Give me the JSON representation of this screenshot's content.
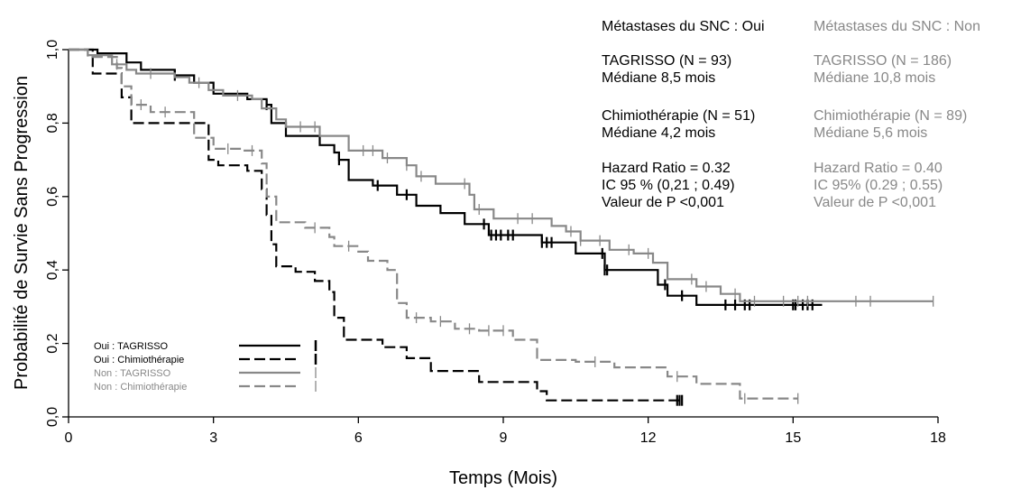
{
  "chart_data": {
    "type": "line",
    "xlabel": "Temps (Mois)",
    "ylabel": "Probabilité de Survie Sans Progression",
    "xlim": [
      0,
      18
    ],
    "ylim": [
      0,
      1
    ],
    "xticks": [
      "0",
      "3",
      "6",
      "9",
      "12",
      "15",
      "18"
    ],
    "yticks": [
      "0,0",
      "0,2",
      "0,4",
      "0,6",
      "0,8",
      "1,0"
    ],
    "grid": false,
    "legend_position": "bottom-left",
    "series": [
      {
        "name": "Oui : TAGRISSO",
        "color": "#000000",
        "dash": "solid",
        "points": [
          [
            0,
            1.0
          ],
          [
            0.6,
            1.0
          ],
          [
            0.6,
            0.99
          ],
          [
            1.2,
            0.99
          ],
          [
            1.2,
            0.965
          ],
          [
            1.5,
            0.965
          ],
          [
            1.5,
            0.945
          ],
          [
            2.2,
            0.945
          ],
          [
            2.2,
            0.93
          ],
          [
            2.6,
            0.93
          ],
          [
            2.6,
            0.91
          ],
          [
            3.0,
            0.91
          ],
          [
            3.0,
            0.88
          ],
          [
            3.7,
            0.88
          ],
          [
            3.7,
            0.865
          ],
          [
            4.1,
            0.865
          ],
          [
            4.1,
            0.85
          ],
          [
            4.2,
            0.85
          ],
          [
            4.2,
            0.8
          ],
          [
            4.5,
            0.8
          ],
          [
            4.5,
            0.765
          ],
          [
            5.2,
            0.765
          ],
          [
            5.2,
            0.74
          ],
          [
            5.5,
            0.74
          ],
          [
            5.5,
            0.72
          ],
          [
            5.6,
            0.72
          ],
          [
            5.6,
            0.7
          ],
          [
            5.8,
            0.7
          ],
          [
            5.8,
            0.645
          ],
          [
            6.3,
            0.645
          ],
          [
            6.3,
            0.63
          ],
          [
            6.8,
            0.63
          ],
          [
            6.8,
            0.605
          ],
          [
            7.2,
            0.605
          ],
          [
            7.2,
            0.575
          ],
          [
            7.7,
            0.575
          ],
          [
            7.7,
            0.555
          ],
          [
            8.2,
            0.555
          ],
          [
            8.2,
            0.525
          ],
          [
            8.7,
            0.525
          ],
          [
            8.7,
            0.495
          ],
          [
            9.8,
            0.495
          ],
          [
            9.8,
            0.475
          ],
          [
            10.5,
            0.475
          ],
          [
            10.5,
            0.445
          ],
          [
            11.1,
            0.445
          ],
          [
            11.1,
            0.4
          ],
          [
            12.2,
            0.4
          ],
          [
            12.2,
            0.36
          ],
          [
            12.4,
            0.36
          ],
          [
            12.4,
            0.33
          ],
          [
            13.0,
            0.33
          ],
          [
            13.0,
            0.305
          ],
          [
            15.6,
            0.305
          ]
        ],
        "censor_x": [
          2.2,
          4.1,
          5.6,
          6.4,
          7.0,
          8.6,
          8.75,
          8.85,
          8.95,
          9.1,
          9.2,
          9.8,
          9.9,
          10.0,
          11.05,
          11.1,
          11.15,
          12.35,
          12.7,
          13.6,
          13.8,
          14.0,
          14.1,
          15.0,
          15.05,
          15.2,
          15.3,
          15.4
        ]
      },
      {
        "name": "Oui : Chimiothérapie",
        "color": "#000000",
        "dash": "long-dash",
        "points": [
          [
            0,
            1.0
          ],
          [
            0.5,
            1.0
          ],
          [
            0.5,
            0.935
          ],
          [
            1.1,
            0.935
          ],
          [
            1.1,
            0.87
          ],
          [
            1.3,
            0.87
          ],
          [
            1.3,
            0.8
          ],
          [
            2.9,
            0.8
          ],
          [
            2.9,
            0.7
          ],
          [
            3.1,
            0.7
          ],
          [
            3.1,
            0.685
          ],
          [
            3.7,
            0.685
          ],
          [
            3.7,
            0.67
          ],
          [
            4.0,
            0.67
          ],
          [
            4.0,
            0.62
          ],
          [
            4.1,
            0.62
          ],
          [
            4.1,
            0.55
          ],
          [
            4.2,
            0.55
          ],
          [
            4.2,
            0.47
          ],
          [
            4.3,
            0.47
          ],
          [
            4.3,
            0.41
          ],
          [
            4.7,
            0.41
          ],
          [
            4.7,
            0.395
          ],
          [
            5.1,
            0.395
          ],
          [
            5.1,
            0.37
          ],
          [
            5.4,
            0.37
          ],
          [
            5.4,
            0.34
          ],
          [
            5.5,
            0.34
          ],
          [
            5.5,
            0.27
          ],
          [
            5.7,
            0.27
          ],
          [
            5.7,
            0.21
          ],
          [
            6.5,
            0.21
          ],
          [
            6.5,
            0.19
          ],
          [
            7.0,
            0.19
          ],
          [
            7.0,
            0.16
          ],
          [
            7.5,
            0.16
          ],
          [
            7.5,
            0.125
          ],
          [
            8.5,
            0.125
          ],
          [
            8.5,
            0.095
          ],
          [
            9.7,
            0.095
          ],
          [
            9.7,
            0.07
          ],
          [
            9.9,
            0.07
          ],
          [
            9.9,
            0.045
          ],
          [
            12.7,
            0.045
          ]
        ],
        "censor_x": [
          12.6,
          12.65,
          12.7
        ]
      },
      {
        "name": "Non : TAGRISSO",
        "color": "#888888",
        "dash": "solid",
        "points": [
          [
            0,
            1.0
          ],
          [
            0.4,
            1.0
          ],
          [
            0.4,
            0.985
          ],
          [
            0.9,
            0.985
          ],
          [
            0.9,
            0.96
          ],
          [
            1.2,
            0.96
          ],
          [
            1.2,
            0.945
          ],
          [
            1.4,
            0.945
          ],
          [
            1.4,
            0.935
          ],
          [
            2.2,
            0.935
          ],
          [
            2.2,
            0.925
          ],
          [
            2.5,
            0.925
          ],
          [
            2.5,
            0.91
          ],
          [
            2.9,
            0.91
          ],
          [
            2.9,
            0.89
          ],
          [
            3.2,
            0.89
          ],
          [
            3.2,
            0.875
          ],
          [
            3.8,
            0.875
          ],
          [
            3.8,
            0.865
          ],
          [
            4.0,
            0.865
          ],
          [
            4.0,
            0.84
          ],
          [
            4.3,
            0.84
          ],
          [
            4.3,
            0.81
          ],
          [
            4.5,
            0.81
          ],
          [
            4.5,
            0.79
          ],
          [
            5.2,
            0.79
          ],
          [
            5.2,
            0.765
          ],
          [
            5.8,
            0.765
          ],
          [
            5.8,
            0.725
          ],
          [
            6.5,
            0.725
          ],
          [
            6.5,
            0.705
          ],
          [
            7.0,
            0.705
          ],
          [
            7.0,
            0.685
          ],
          [
            7.2,
            0.685
          ],
          [
            7.2,
            0.655
          ],
          [
            7.6,
            0.655
          ],
          [
            7.6,
            0.635
          ],
          [
            8.3,
            0.635
          ],
          [
            8.3,
            0.605
          ],
          [
            8.4,
            0.605
          ],
          [
            8.4,
            0.565
          ],
          [
            8.8,
            0.565
          ],
          [
            8.8,
            0.54
          ],
          [
            10.0,
            0.54
          ],
          [
            10.0,
            0.52
          ],
          [
            10.3,
            0.52
          ],
          [
            10.3,
            0.505
          ],
          [
            10.6,
            0.505
          ],
          [
            10.6,
            0.48
          ],
          [
            11.2,
            0.48
          ],
          [
            11.2,
            0.455
          ],
          [
            11.7,
            0.455
          ],
          [
            11.7,
            0.445
          ],
          [
            12.1,
            0.445
          ],
          [
            12.1,
            0.42
          ],
          [
            12.4,
            0.42
          ],
          [
            12.4,
            0.375
          ],
          [
            13.0,
            0.375
          ],
          [
            13.0,
            0.355
          ],
          [
            13.5,
            0.355
          ],
          [
            13.5,
            0.335
          ],
          [
            13.9,
            0.335
          ],
          [
            13.9,
            0.315
          ],
          [
            17.9,
            0.315
          ]
        ],
        "censor_x": [
          1.0,
          1.7,
          2.7,
          3.5,
          4.8,
          5.1,
          6.1,
          6.3,
          6.6,
          7.0,
          7.3,
          8.2,
          8.5,
          9.3,
          9.6,
          10.4,
          10.6,
          11.0,
          11.6,
          12.0,
          12.9,
          13.2,
          13.8,
          14.2,
          14.8,
          15.1,
          15.3,
          16.3,
          16.6,
          17.9
        ]
      },
      {
        "name": "Non : Chimiothérapie",
        "color": "#888888",
        "dash": "long-dash",
        "points": [
          [
            0,
            1.0
          ],
          [
            0.4,
            1.0
          ],
          [
            0.4,
            0.98
          ],
          [
            1.0,
            0.98
          ],
          [
            1.0,
            0.95
          ],
          [
            1.1,
            0.95
          ],
          [
            1.1,
            0.9
          ],
          [
            1.3,
            0.9
          ],
          [
            1.3,
            0.85
          ],
          [
            1.7,
            0.85
          ],
          [
            1.7,
            0.83
          ],
          [
            2.6,
            0.83
          ],
          [
            2.6,
            0.76
          ],
          [
            3.0,
            0.76
          ],
          [
            3.0,
            0.73
          ],
          [
            3.6,
            0.73
          ],
          [
            3.6,
            0.725
          ],
          [
            4.0,
            0.725
          ],
          [
            4.0,
            0.69
          ],
          [
            4.1,
            0.69
          ],
          [
            4.1,
            0.6
          ],
          [
            4.3,
            0.6
          ],
          [
            4.3,
            0.53
          ],
          [
            4.9,
            0.53
          ],
          [
            4.9,
            0.515
          ],
          [
            5.4,
            0.515
          ],
          [
            5.4,
            0.49
          ],
          [
            5.5,
            0.49
          ],
          [
            5.5,
            0.465
          ],
          [
            6.0,
            0.465
          ],
          [
            6.0,
            0.45
          ],
          [
            6.2,
            0.45
          ],
          [
            6.2,
            0.425
          ],
          [
            6.6,
            0.425
          ],
          [
            6.6,
            0.4
          ],
          [
            6.8,
            0.4
          ],
          [
            6.8,
            0.31
          ],
          [
            7.0,
            0.31
          ],
          [
            7.0,
            0.27
          ],
          [
            7.5,
            0.27
          ],
          [
            7.5,
            0.26
          ],
          [
            8.0,
            0.26
          ],
          [
            8.0,
            0.24
          ],
          [
            8.5,
            0.24
          ],
          [
            8.5,
            0.235
          ],
          [
            9.2,
            0.235
          ],
          [
            9.2,
            0.21
          ],
          [
            9.7,
            0.21
          ],
          [
            9.7,
            0.155
          ],
          [
            10.5,
            0.155
          ],
          [
            10.5,
            0.15
          ],
          [
            11.3,
            0.15
          ],
          [
            11.3,
            0.135
          ],
          [
            12.4,
            0.135
          ],
          [
            12.4,
            0.11
          ],
          [
            13.0,
            0.11
          ],
          [
            13.0,
            0.09
          ],
          [
            13.9,
            0.09
          ],
          [
            13.9,
            0.05
          ],
          [
            15.1,
            0.05
          ]
        ],
        "censor_x": [
          1.5,
          2.0,
          3.3,
          3.8,
          5.1,
          5.8,
          7.2,
          7.7,
          8.3,
          8.7,
          9.0,
          10.9,
          12.6,
          14.0,
          15.1
        ]
      }
    ],
    "annotations": {
      "header_oui": "Métastases du SNC : Oui",
      "header_non": "Métastases du SNC : Non",
      "oui": {
        "tag_n": "TAGRISSO (N = 93)",
        "tag_median": "Médiane 8,5 mois",
        "chemo_n": "Chimiothérapie (N = 51)",
        "chemo_median": "Médiane 4,2 mois",
        "hr": "Hazard Ratio = 0.32",
        "ci": "IC 95 % (0,21 ; 0.49)",
        "p": "Valeur de P <0,001"
      },
      "non": {
        "tag_n": "TAGRISSO (N = 186)",
        "tag_median": "Médiane 10,8 mois",
        "chemo_n": "Chimiothérapie (N = 89)",
        "chemo_median": "Médiane 5,6 mois",
        "hr": "Hazard Ratio = 0.40",
        "ci": "IC 95% (0.29 ; 0.55)",
        "p": "Valeur de P <0,001"
      }
    }
  }
}
